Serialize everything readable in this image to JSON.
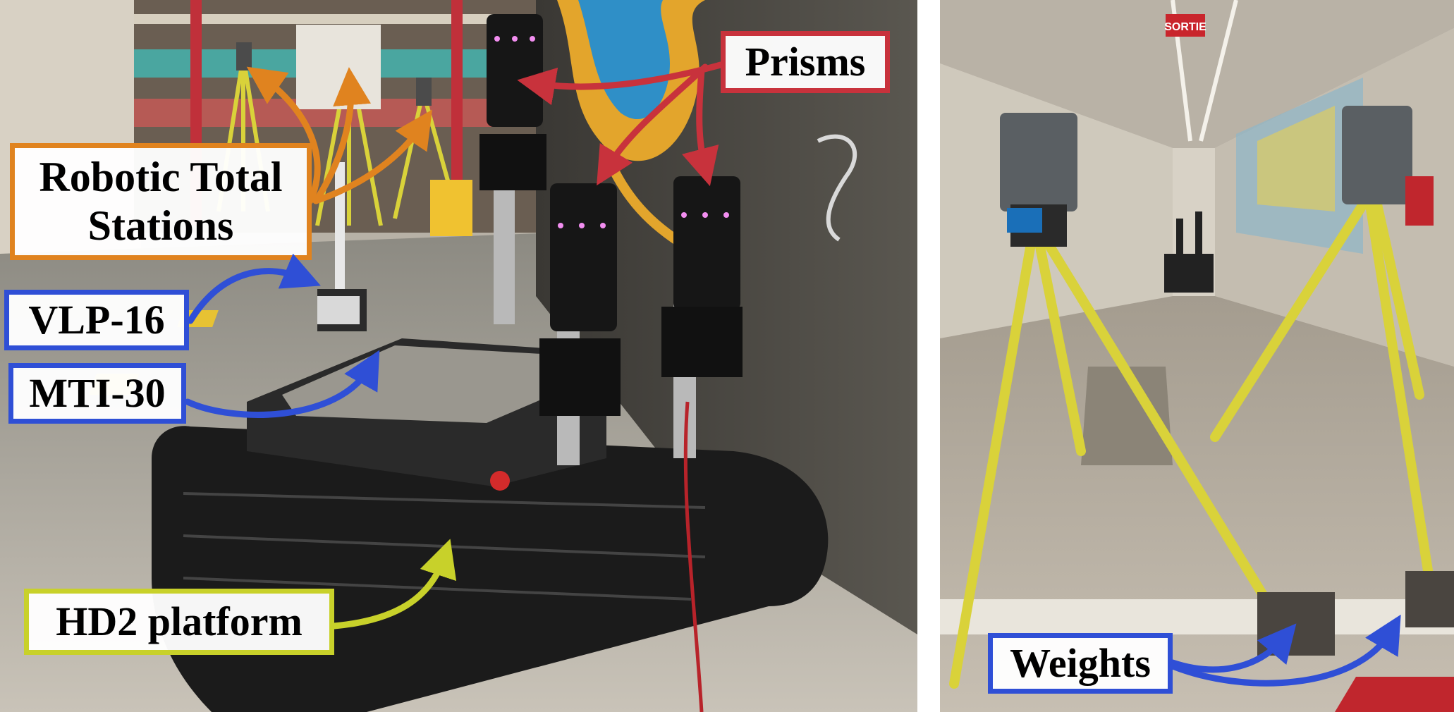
{
  "colors": {
    "prisms": "#c8323c",
    "stations": "#e0831f",
    "sensors": "#2f4fd6",
    "platform": "#c8d12a",
    "weights": "#2f4fd6"
  },
  "left_panel": {
    "labels": {
      "prisms": "Prisms",
      "stations": "Robotic Total\nStations",
      "vlp16": "VLP-16",
      "mti30": "MTI-30",
      "platform": "HD2 platform"
    }
  },
  "right_panel": {
    "exit_sign": "SORTIE",
    "labels": {
      "weights": "Weights"
    }
  }
}
